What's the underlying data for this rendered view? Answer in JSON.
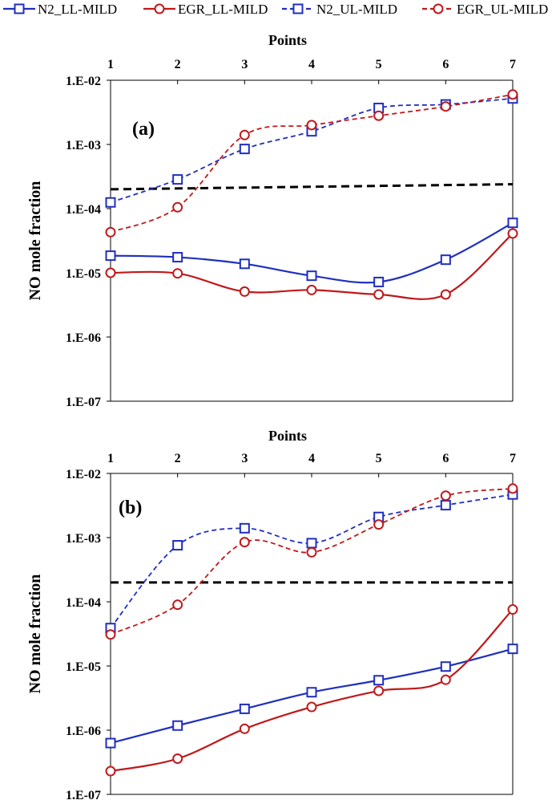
{
  "legend": [
    {
      "name": "N2_LL-MILD",
      "color": "#1f2fbf",
      "dash": false,
      "marker": "square"
    },
    {
      "name": "EGR_LL-MILD",
      "color": "#c0191b",
      "dash": false,
      "marker": "circle"
    },
    {
      "name": "N2_UL-MILD",
      "color": "#1f2fbf",
      "dash": true,
      "marker": "square"
    },
    {
      "name": "EGR_UL-MILD",
      "color": "#c0191b",
      "dash": true,
      "marker": "circle"
    }
  ],
  "chart_data": [
    {
      "type": "line",
      "panel_label": "(a)",
      "xlabel": "Points",
      "ylabel": "NO mole fraction",
      "x": [
        1,
        2,
        3,
        4,
        5,
        6,
        7
      ],
      "x_tick_labels": [
        "1",
        "2",
        "3",
        "4",
        "5",
        "6",
        "7"
      ],
      "y_scale": "log",
      "ylim": [
        1e-07,
        0.01
      ],
      "y_tick_labels": [
        "1.E-07",
        "1.E-06",
        "1.E-05",
        "1.E-04",
        "1.E-03",
        "1.E-02"
      ],
      "series": [
        {
          "name": "N2_LL-MILD",
          "values": [
            1.85e-05,
            1.75e-05,
            1.38e-05,
            9e-06,
            7.2e-06,
            1.6e-05,
            6e-05
          ]
        },
        {
          "name": "EGR_LL-MILD",
          "values": [
            1e-05,
            9.8e-06,
            5.1e-06,
            5.4e-06,
            4.6e-06,
            4.6e-06,
            4.1e-05
          ]
        },
        {
          "name": "N2_UL-MILD",
          "values": [
            0.000125,
            0.000285,
            0.00085,
            0.0016,
            0.0037,
            0.0042,
            0.0052
          ]
        },
        {
          "name": "EGR_UL-MILD",
          "values": [
            4.3e-05,
            0.000105,
            0.0014,
            0.002,
            0.0028,
            0.0039,
            0.006
          ]
        }
      ],
      "reference_line": {
        "style": "black dashed",
        "start": 0.0002,
        "end": 0.00024
      }
    },
    {
      "type": "line",
      "panel_label": "(b)",
      "xlabel": "Points",
      "ylabel": "NO mole fraction",
      "x": [
        1,
        2,
        3,
        4,
        5,
        6,
        7
      ],
      "x_tick_labels": [
        "1",
        "2",
        "3",
        "4",
        "5",
        "6",
        "7"
      ],
      "y_scale": "log",
      "ylim": [
        1e-07,
        0.01
      ],
      "y_tick_labels": [
        "1.E-07",
        "1.E-06",
        "1.E-05",
        "1.E-04",
        "1.E-03",
        "1.E-02"
      ],
      "series": [
        {
          "name": "N2_LL-MILD",
          "values": [
            6.3e-07,
            1.18e-06,
            2.15e-06,
            3.9e-06,
            6e-06,
            9.8e-06,
            1.85e-05
          ]
        },
        {
          "name": "EGR_LL-MILD",
          "values": [
            2.3e-07,
            3.6e-07,
            1.05e-06,
            2.3e-06,
            4.1e-06,
            6.1e-06,
            7.6e-05
          ]
        },
        {
          "name": "N2_UL-MILD",
          "values": [
            3.9e-05,
            0.00076,
            0.0014,
            0.00082,
            0.0021,
            0.0032,
            0.0047
          ]
        },
        {
          "name": "EGR_UL-MILD",
          "values": [
            3.1e-05,
            9e-05,
            0.00085,
            0.00059,
            0.0016,
            0.0045,
            0.0058
          ]
        }
      ],
      "reference_line": {
        "style": "black dashed",
        "start": 0.0002,
        "end": 0.0002
      }
    }
  ]
}
